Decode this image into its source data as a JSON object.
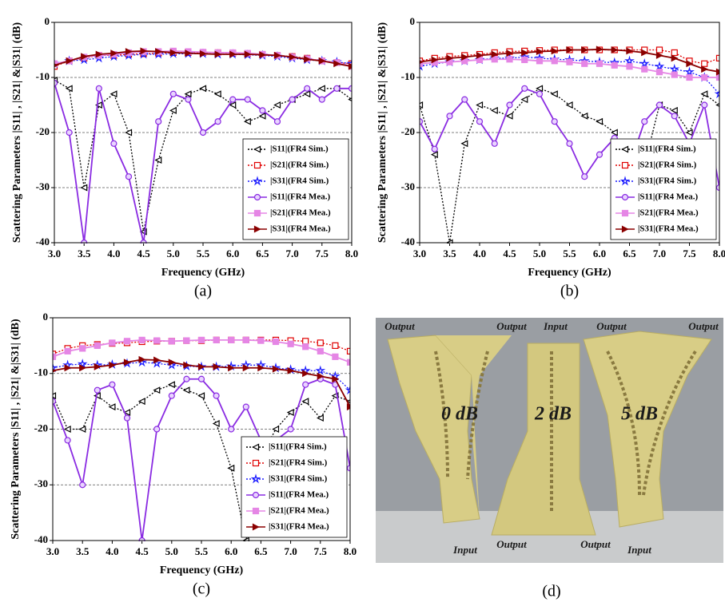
{
  "chart_data": [
    {
      "type": "line",
      "caption": "(a)",
      "x_label": "Frequency (GHz)",
      "y_label": "Scattering Parameters |S11| , |S21| &|S31| (dB)",
      "x": [
        3,
        3.25,
        3.5,
        3.75,
        4,
        4.25,
        4.5,
        4.75,
        5,
        5.25,
        5.5,
        5.75,
        6,
        6.25,
        6.5,
        6.75,
        7,
        7.25,
        7.5,
        7.75,
        8
      ],
      "xlim": [
        3,
        8
      ],
      "ylim": [
        -40,
        0
      ],
      "xticks": [
        {
          "value": 3,
          "label": "3.0"
        },
        {
          "value": 3.5,
          "label": "3.5"
        },
        {
          "value": 4,
          "label": "4.0"
        },
        {
          "value": 4.5,
          "label": "4.5"
        },
        {
          "value": 5,
          "label": "5.0"
        },
        {
          "value": 5.5,
          "label": "5.5"
        },
        {
          "value": 6,
          "label": "6.0"
        },
        {
          "value": 6.5,
          "label": "6.5"
        },
        {
          "value": 7,
          "label": "7.0"
        },
        {
          "value": 7.5,
          "label": "7.5"
        },
        {
          "value": 8,
          "label": "8.0"
        }
      ],
      "yticks": [
        0,
        -10,
        -20,
        -30,
        -40
      ],
      "grid": true,
      "legend": "lower right",
      "series": [
        {
          "name": "|S11|(FR4 Sim.)",
          "color": "#000000",
          "style": "dotted",
          "marker": "triangle-left",
          "values": [
            -10.5,
            -12,
            -30,
            -15,
            -13,
            -20,
            -38,
            -25,
            -16,
            -13,
            -12,
            -13,
            -15,
            -18,
            -17,
            -15,
            -14,
            -13,
            -12,
            -12,
            -14
          ]
        },
        {
          "name": "|S21|(FR4 Sim.)",
          "color": "#e00000",
          "style": "dotted",
          "marker": "square",
          "values": [
            -8,
            -7,
            -6.5,
            -6,
            -6,
            -5.8,
            -5.7,
            -5.6,
            -5.5,
            -5.5,
            -5.5,
            -5.5,
            -5.6,
            -5.7,
            -5.8,
            -6,
            -6.2,
            -6.5,
            -7,
            -7.3,
            -7.5
          ]
        },
        {
          "name": "|S31|(FR4 Sim.)",
          "color": "#1a1aff",
          "style": "dotted",
          "marker": "star",
          "values": [
            -7.5,
            -7,
            -6.8,
            -6.5,
            -6.2,
            -6,
            -5.8,
            -5.8,
            -5.7,
            -5.7,
            -5.7,
            -5.8,
            -5.8,
            -5.9,
            -6,
            -6.2,
            -6.5,
            -6.8,
            -7,
            -7.2,
            -7.5
          ]
        },
        {
          "name": "|S11|(FR4 Mea.)",
          "color": "#8a2be2",
          "style": "solid",
          "marker": "circle",
          "values": [
            -11,
            -20,
            -40,
            -12,
            -22,
            -28,
            -40,
            -18,
            -13,
            -14,
            -20,
            -18,
            -14,
            -14,
            -16,
            -18,
            -14,
            -12,
            -14,
            -12,
            -12
          ]
        },
        {
          "name": "|S21|(FR4 Mea.)",
          "color": "#e586e5",
          "style": "solid",
          "marker": "square",
          "values": [
            -7.5,
            -7,
            -6.3,
            -6,
            -5.8,
            -5.5,
            -5.3,
            -5.3,
            -5.2,
            -5.3,
            -5.4,
            -5.5,
            -5.5,
            -5.6,
            -5.8,
            -6,
            -6.3,
            -6.6,
            -7,
            -7.3,
            -8
          ]
        },
        {
          "name": "|S31|(FR4 Mea.)",
          "color": "#8b0000",
          "style": "solid",
          "marker": "triangle-right",
          "values": [
            -7.8,
            -7,
            -6.2,
            -5.8,
            -5.6,
            -5.3,
            -5.2,
            -5.3,
            -5.5,
            -5.6,
            -5.7,
            -5.8,
            -5.8,
            -5.8,
            -5.9,
            -6,
            -6.3,
            -6.7,
            -7,
            -7.5,
            -8
          ]
        }
      ]
    },
    {
      "type": "line",
      "caption": "(b)",
      "x_label": "Frequency (GHz)",
      "y_label": "Scattering Parameters |S11| , |S21| &|S31| (dB)",
      "x": [
        3,
        3.25,
        3.5,
        3.75,
        4,
        4.25,
        4.5,
        4.75,
        5,
        5.25,
        5.5,
        5.75,
        6,
        6.25,
        6.5,
        6.75,
        7,
        7.25,
        7.5,
        7.75,
        8
      ],
      "xlim": [
        3,
        8
      ],
      "ylim": [
        -40,
        0
      ],
      "xticks": [
        {
          "value": 3,
          "label": "3.0"
        },
        {
          "value": 3.5,
          "label": "3.5"
        },
        {
          "value": 4,
          "label": "4.0"
        },
        {
          "value": 4.5,
          "label": "4.5"
        },
        {
          "value": 5,
          "label": "5.0"
        },
        {
          "value": 5.5,
          "label": "5.5"
        },
        {
          "value": 6,
          "label": "6.0"
        },
        {
          "value": 6.5,
          "label": "6.5"
        },
        {
          "value": 7,
          "label": "7.0"
        },
        {
          "value": 7.5,
          "label": "7.5"
        },
        {
          "value": 8,
          "label": "8.0"
        }
      ],
      "yticks": [
        0,
        -10,
        -20,
        -30,
        -40
      ],
      "grid": true,
      "legend": "lower right",
      "series": [
        {
          "name": "|S11|(FR4 Sim.)",
          "color": "#000000",
          "style": "dotted",
          "marker": "triangle-left",
          "values": [
            -15,
            -24,
            -40,
            -22,
            -15,
            -16,
            -17,
            -14,
            -12,
            -13,
            -15,
            -17,
            -18,
            -20,
            -30,
            -26,
            -15,
            -16,
            -20,
            -13,
            -15
          ]
        },
        {
          "name": "|S21|(FR4 Sim.)",
          "color": "#e00000",
          "style": "dotted",
          "marker": "square",
          "values": [
            -7,
            -6.5,
            -6.2,
            -6,
            -5.8,
            -5.5,
            -5.3,
            -5.2,
            -5.1,
            -5,
            -5,
            -5,
            -5,
            -5,
            -5,
            -5,
            -5,
            -5.5,
            -7,
            -7.5,
            -6.5
          ]
        },
        {
          "name": "|S31|(FR4 Sim.)",
          "color": "#1a1aff",
          "style": "dotted",
          "marker": "star",
          "values": [
            -8,
            -7.5,
            -7.2,
            -7,
            -6.8,
            -6.5,
            -6.5,
            -6.3,
            -6.5,
            -6.7,
            -6.8,
            -7,
            -7.2,
            -7.3,
            -7,
            -7.5,
            -8,
            -8.5,
            -9,
            -10,
            -13
          ]
        },
        {
          "name": "|S11|(FR4 Mea.)",
          "color": "#8a2be2",
          "style": "solid",
          "marker": "circle",
          "values": [
            -18,
            -23,
            -17,
            -14,
            -18,
            -22,
            -15,
            -12,
            -13,
            -18,
            -22,
            -28,
            -24,
            -21,
            -26,
            -18,
            -15,
            -17,
            -22,
            -15,
            -30
          ]
        },
        {
          "name": "|S21|(FR4 Mea.)",
          "color": "#e586e5",
          "style": "solid",
          "marker": "square",
          "values": [
            -7.5,
            -7.3,
            -7.2,
            -7,
            -6.8,
            -6.7,
            -6.7,
            -6.8,
            -7,
            -7,
            -7.2,
            -7.5,
            -7.5,
            -7.8,
            -8,
            -8.5,
            -9,
            -9.5,
            -10,
            -10,
            -10
          ]
        },
        {
          "name": "|S31|(FR4 Mea.)",
          "color": "#8b0000",
          "style": "solid",
          "marker": "triangle-right",
          "values": [
            -7.2,
            -6.8,
            -6.5,
            -6.3,
            -6,
            -5.8,
            -5.6,
            -5.5,
            -5.3,
            -5.2,
            -5,
            -5,
            -4.9,
            -5,
            -5.2,
            -5.5,
            -6,
            -6.5,
            -7.5,
            -8.5,
            -9
          ]
        }
      ]
    },
    {
      "type": "line",
      "caption": "(c)",
      "x_label": "Frequency (GHz)",
      "y_label": "Scattering Parameters |S11| , |S21| &|S31| (dB)",
      "x": [
        3,
        3.25,
        3.5,
        3.75,
        4,
        4.25,
        4.5,
        4.75,
        5,
        5.25,
        5.5,
        5.75,
        6,
        6.25,
        6.5,
        6.75,
        7,
        7.25,
        7.5,
        7.75,
        8
      ],
      "xlim": [
        3,
        8
      ],
      "ylim": [
        -40,
        0
      ],
      "xticks": [
        {
          "value": 3,
          "label": "3.0"
        },
        {
          "value": 3.5,
          "label": "3.5"
        },
        {
          "value": 4,
          "label": "4.0"
        },
        {
          "value": 4.5,
          "label": "4.5"
        },
        {
          "value": 5,
          "label": "5.0"
        },
        {
          "value": 5.5,
          "label": "5.5"
        },
        {
          "value": 6,
          "label": "6.0"
        },
        {
          "value": 6.5,
          "label": "6.5"
        },
        {
          "value": 7,
          "label": "7.0"
        },
        {
          "value": 7.5,
          "label": "7.5"
        },
        {
          "value": 8,
          "label": "8.0"
        }
      ],
      "yticks": [
        0,
        -10,
        -20,
        -30,
        -40
      ],
      "grid": true,
      "legend": "lower right",
      "series": [
        {
          "name": "|S11|(FR4 Sim.)",
          "color": "#000000",
          "style": "dotted",
          "marker": "triangle-left",
          "values": [
            -14,
            -20,
            -20,
            -14,
            -16,
            -17,
            -15,
            -13,
            -12,
            -13,
            -14,
            -19,
            -27,
            -40,
            -25,
            -20,
            -17,
            -15,
            -18,
            -14,
            -15
          ]
        },
        {
          "name": "|S21|(FR4 Sim.)",
          "color": "#e00000",
          "style": "dotted",
          "marker": "square",
          "values": [
            -6.5,
            -5.5,
            -5,
            -4.8,
            -4.6,
            -4.5,
            -4.3,
            -4.2,
            -4.2,
            -4.1,
            -4.1,
            -4,
            -4,
            -4,
            -4,
            -4,
            -4.1,
            -4.2,
            -4.5,
            -5,
            -6
          ]
        },
        {
          "name": "|S31|(FR4 Sim.)",
          "color": "#1a1aff",
          "style": "dotted",
          "marker": "star",
          "values": [
            -9,
            -8.5,
            -8.3,
            -8.5,
            -8.4,
            -8.2,
            -8,
            -8.2,
            -8.5,
            -8.7,
            -8.8,
            -8.8,
            -8.7,
            -8.5,
            -8.5,
            -9,
            -9.3,
            -9.5,
            -9.5,
            -10.5,
            -13
          ]
        },
        {
          "name": "|S11|(FR4 Mea.)",
          "color": "#8a2be2",
          "style": "solid",
          "marker": "circle",
          "values": [
            -15,
            -22,
            -30,
            -13,
            -12,
            -18,
            -40,
            -20,
            -14,
            -11,
            -11,
            -14,
            -20,
            -16,
            -22,
            -22,
            -20,
            -12,
            -11,
            -12,
            -27
          ]
        },
        {
          "name": "|S21|(FR4 Mea.)",
          "color": "#e586e5",
          "style": "solid",
          "marker": "square",
          "values": [
            -7,
            -6,
            -5.5,
            -5,
            -4.5,
            -4.2,
            -4,
            -4.1,
            -4.2,
            -4.1,
            -4,
            -4,
            -4,
            -4,
            -4.1,
            -4.3,
            -4.7,
            -5.2,
            -6,
            -7,
            -8
          ]
        },
        {
          "name": "|S31|(FR4 Mea.)",
          "color": "#8b0000",
          "style": "solid",
          "marker": "triangle-right",
          "values": [
            -9.5,
            -9,
            -9,
            -8.8,
            -8.5,
            -8,
            -7.5,
            -7.6,
            -8,
            -8.5,
            -8.8,
            -8.8,
            -9,
            -9,
            -9,
            -9.2,
            -9.5,
            -10,
            -10.5,
            -11,
            -16
          ]
        }
      ]
    }
  ],
  "photo": {
    "caption": "(d)",
    "left_output_1": "Output",
    "left_output_2": "Output",
    "middle_input_top": "Input",
    "right_output_1": "Output",
    "right_output_2": "Output",
    "left_board": "0 dB",
    "middle_board": "2 dB",
    "right_board": "5 dB",
    "left_input": "Input",
    "middle_output_1": "Output",
    "middle_output_2": "Output",
    "right_input": "Input"
  }
}
